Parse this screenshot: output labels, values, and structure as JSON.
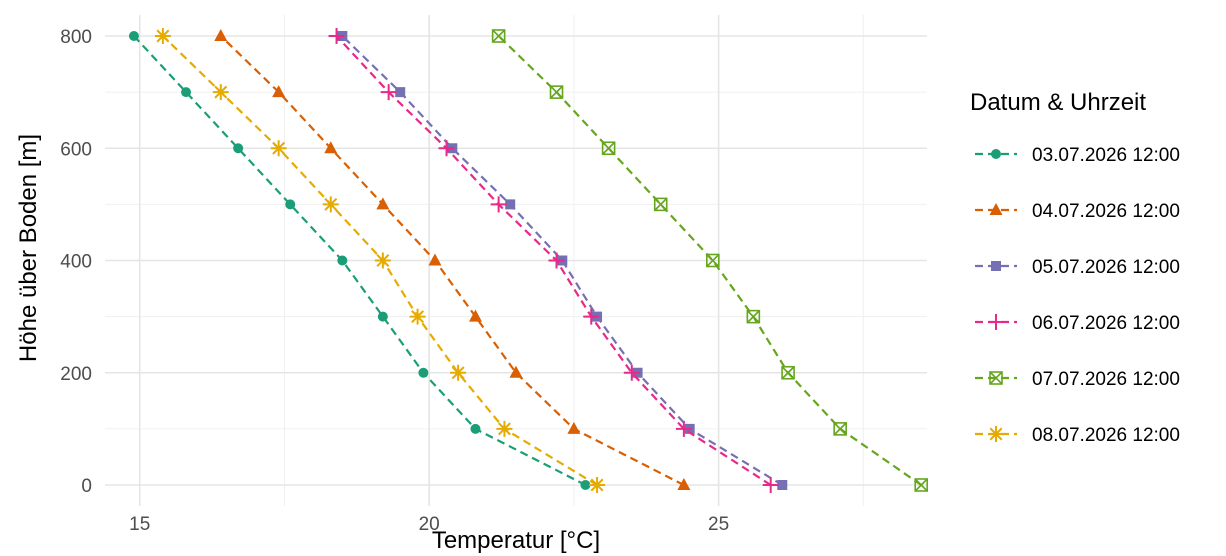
{
  "chart_data": {
    "type": "line",
    "xlabel": "Temperatur [°C]",
    "ylabel": "Höhe über Boden [m]",
    "xlim": [
      14.4,
      28.6
    ],
    "ylim": [
      0,
      800
    ],
    "x_ticks": [
      15,
      20,
      25
    ],
    "y_ticks": [
      0,
      200,
      400,
      600,
      800
    ],
    "grid": true,
    "legend_title": "Datum & Uhrzeit",
    "legend_position": "right",
    "series": [
      {
        "name": "03.07.2026 12:00",
        "color": "#1b9e77",
        "marker": "circle",
        "points": [
          [
            22.7,
            0
          ],
          [
            20.8,
            100
          ],
          [
            19.9,
            200
          ],
          [
            19.2,
            300
          ],
          [
            18.5,
            400
          ],
          [
            17.6,
            500
          ],
          [
            16.7,
            600
          ],
          [
            15.8,
            700
          ],
          [
            14.9,
            800
          ]
        ]
      },
      {
        "name": "04.07.2026 12:00",
        "color": "#d95f02",
        "marker": "triangle",
        "points": [
          [
            24.4,
            0
          ],
          [
            22.5,
            100
          ],
          [
            21.5,
            200
          ],
          [
            20.8,
            300
          ],
          [
            20.1,
            400
          ],
          [
            19.2,
            500
          ],
          [
            18.3,
            600
          ],
          [
            17.4,
            700
          ],
          [
            16.4,
            800
          ]
        ]
      },
      {
        "name": "05.07.2026 12:00",
        "color": "#7570b3",
        "marker": "square",
        "points": [
          [
            26.1,
            0
          ],
          [
            24.5,
            100
          ],
          [
            23.6,
            200
          ],
          [
            22.9,
            300
          ],
          [
            22.3,
            400
          ],
          [
            21.4,
            500
          ],
          [
            20.4,
            600
          ],
          [
            19.5,
            700
          ],
          [
            18.5,
            800
          ]
        ]
      },
      {
        "name": "06.07.2026 12:00",
        "color": "#e7298a",
        "marker": "plus",
        "points": [
          [
            25.9,
            0
          ],
          [
            24.4,
            100
          ],
          [
            23.5,
            200
          ],
          [
            22.8,
            300
          ],
          [
            22.2,
            400
          ],
          [
            21.2,
            500
          ],
          [
            20.3,
            600
          ],
          [
            19.3,
            700
          ],
          [
            18.4,
            800
          ]
        ]
      },
      {
        "name": "07.07.2026 12:00",
        "color": "#66a61e",
        "marker": "boxcross",
        "points": [
          [
            28.5,
            0
          ],
          [
            27.1,
            100
          ],
          [
            26.2,
            200
          ],
          [
            25.6,
            300
          ],
          [
            24.9,
            400
          ],
          [
            24.0,
            500
          ],
          [
            23.1,
            600
          ],
          [
            22.2,
            700
          ],
          [
            21.2,
            800
          ]
        ]
      },
      {
        "name": "08.07.2026 12:00",
        "color": "#e6ab02",
        "marker": "asterisk",
        "points": [
          [
            22.9,
            0
          ],
          [
            21.3,
            100
          ],
          [
            20.5,
            200
          ],
          [
            19.8,
            300
          ],
          [
            19.2,
            400
          ],
          [
            18.3,
            500
          ],
          [
            17.4,
            600
          ],
          [
            16.4,
            700
          ],
          [
            15.4,
            800
          ]
        ]
      }
    ]
  }
}
